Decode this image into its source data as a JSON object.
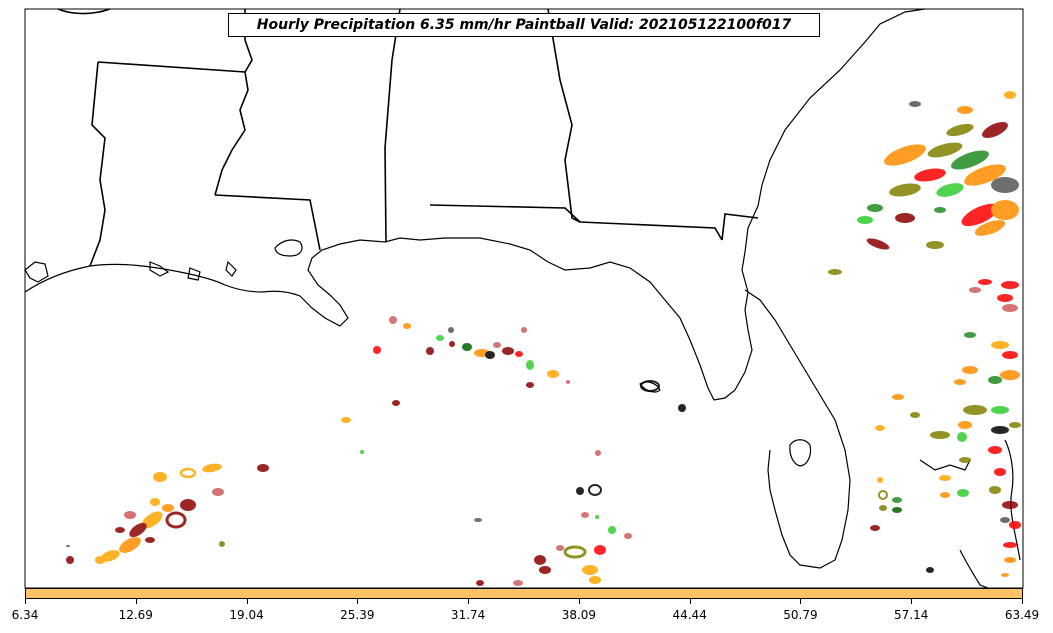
{
  "title": "Hourly Precipitation 6.35 mm/hr Paintball Valid: 202105122100f017",
  "colors": {
    "map_border": "#000000",
    "colorbar_fill": "#ffc266",
    "member_palette": [
      "#ff0000",
      "#ff8c00",
      "#8b0000",
      "#808000",
      "#228b22",
      "#32cd32",
      "#000000",
      "#555555",
      "#cd5c5c",
      "#ffa500"
    ]
  },
  "colorbar": {
    "ticks": [
      "6.34",
      "12.69",
      "19.04",
      "25.39",
      "31.74",
      "38.09",
      "44.44",
      "50.79",
      "57.14",
      "63.49"
    ]
  },
  "map": {
    "features": [
      "coastline-icon",
      "state-border-icon",
      "precip-blob-icon"
    ]
  }
}
